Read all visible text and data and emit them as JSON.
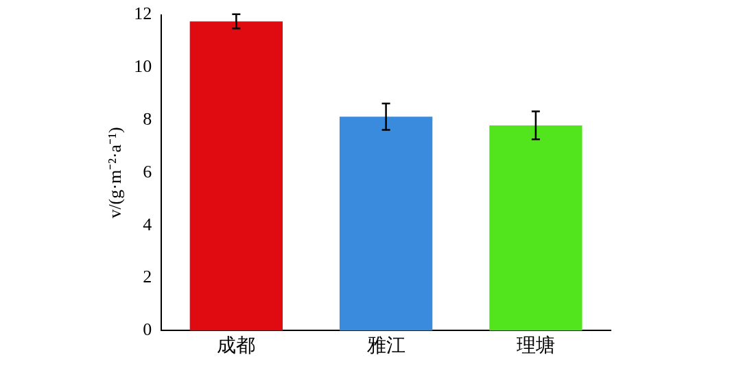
{
  "chart_data": {
    "type": "bar",
    "ylabel": "v/(g·m⁻²·a⁻¹)",
    "categories": [
      "成都",
      "雅江",
      "理塘"
    ],
    "values": [
      11.75,
      8.13,
      7.8
    ],
    "colors": [
      "#e00b10",
      "#3a8ade",
      "#52e41c"
    ],
    "errors": [
      0.27,
      0.5,
      0.53
    ],
    "ylim": [
      0,
      12
    ],
    "yticks": [
      0,
      2,
      4,
      6,
      8,
      10,
      12
    ],
    "grid": false,
    "legend": false
  }
}
